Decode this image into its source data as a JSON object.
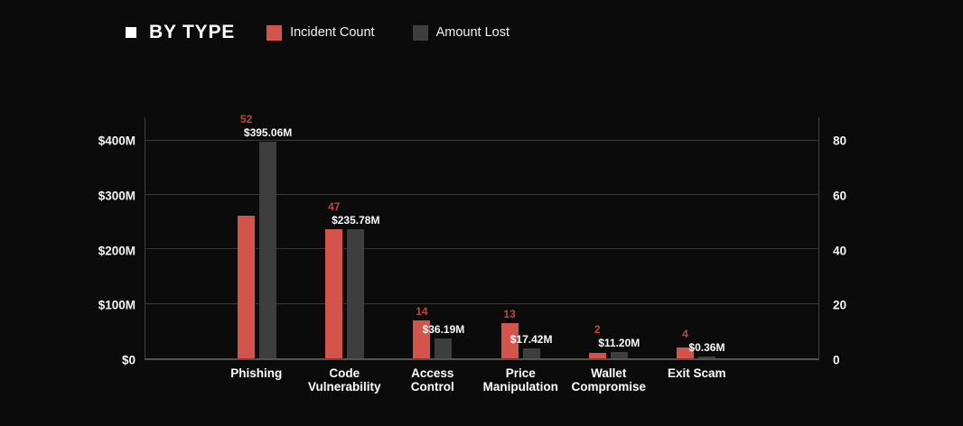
{
  "header": {
    "title": "BY TYPE"
  },
  "chart_data": {
    "type": "bar",
    "title": "BY TYPE",
    "categories": [
      "Phishing",
      "Code\nVulnerability",
      "Access\nControl",
      "Price\nManipulation",
      "Wallet\nCompromise",
      "Exit Scam"
    ],
    "series": [
      {
        "name": "Incident Count",
        "axis": "right",
        "color": "#d2544b",
        "values": [
          52,
          47,
          14,
          13,
          2,
          4
        ],
        "labels": [
          "52",
          "47",
          "14",
          "13",
          "2",
          "4"
        ]
      },
      {
        "name": "Amount Lost",
        "axis": "left",
        "color": "#3e3e3e",
        "values": [
          395.06,
          235.78,
          36.19,
          17.42,
          11.2,
          0.36
        ],
        "labels": [
          "$395.06M",
          "$235.78M",
          "$36.19M",
          "$17.42M",
          "$11.20M",
          "$0.36M"
        ]
      }
    ],
    "left_axis": {
      "ticks": [
        {
          "value": 0,
          "label": "$0"
        },
        {
          "value": 100,
          "label": "$100M"
        },
        {
          "value": 200,
          "label": "$200M"
        },
        {
          "value": 300,
          "label": "$300M"
        },
        {
          "value": 400,
          "label": "$400M"
        }
      ],
      "range": [
        0,
        443
      ]
    },
    "right_axis": {
      "ticks": [
        {
          "value": 0,
          "label": "0"
        },
        {
          "value": 20,
          "label": "20"
        },
        {
          "value": 40,
          "label": "40"
        },
        {
          "value": 60,
          "label": "60"
        },
        {
          "value": 80,
          "label": "80"
        }
      ],
      "range": [
        0,
        88.6
      ]
    },
    "grid": true,
    "legend_position": "top",
    "background_color": "#0b0b0b"
  }
}
